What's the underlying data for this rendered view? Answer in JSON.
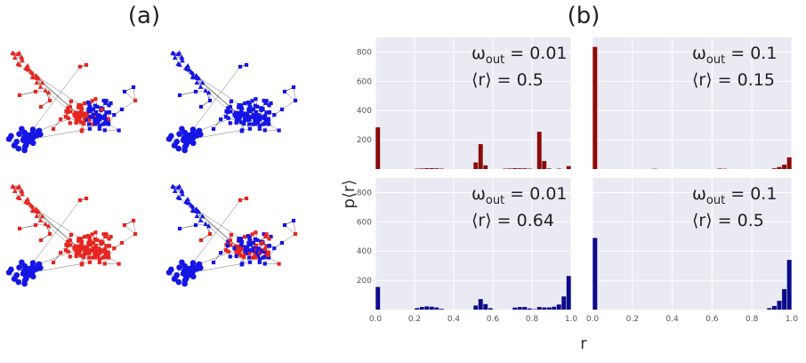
{
  "figure": {
    "panel_a_label": "(a)",
    "panel_b_label": "(b)"
  },
  "colors": {
    "red": "#e8251f",
    "blue": "#1515e6",
    "bar_top": "#8b0a0a",
    "bar_bottom": "#0b0b8a",
    "plot_bg": "#eaeaf2",
    "grid": "#ffffff"
  },
  "network_panels": [
    {
      "name": "network-top-left",
      "scheme": "mixed-top"
    },
    {
      "name": "network-top-right",
      "scheme": "all-blue"
    },
    {
      "name": "network-bottom-left",
      "scheme": "red-majority"
    },
    {
      "name": "network-bottom-right",
      "scheme": "mixed-bottom"
    }
  ],
  "chart_data": {
    "type": "bar",
    "ylabel": "p⟨r⟩",
    "xlabel": "r",
    "xlim": [
      0,
      1
    ],
    "ylim": [
      0,
      900
    ],
    "xticks": [
      0.0,
      0.2,
      0.4,
      0.6,
      0.8,
      1.0
    ],
    "xtick_labels": [
      "0.0",
      "0.2",
      "0.4",
      "0.6",
      "0.8",
      "1.0"
    ],
    "yticks": [
      200,
      400,
      600,
      800
    ],
    "ytick_labels": [
      "200",
      "400",
      "600",
      "800"
    ],
    "bins": 40,
    "subplots": [
      {
        "name": "top-left",
        "color": "#8b0a0a",
        "omega_symbol": "ω",
        "omega_sub": "out",
        "omega_value": " = 0.01",
        "r_text": "⟨r⟩ = 0.5",
        "values": [
          285,
          0,
          0,
          0,
          0,
          0,
          0,
          0,
          3,
          4,
          6,
          6,
          5,
          3,
          0,
          0,
          0,
          0,
          0,
          0,
          45,
          170,
          25,
          0,
          0,
          0,
          3,
          4,
          6,
          5,
          5,
          3,
          0,
          255,
          55,
          4,
          0,
          3,
          0,
          20
        ]
      },
      {
        "name": "top-right",
        "color": "#8b0a0a",
        "omega_symbol": "ω",
        "omega_sub": "out",
        "omega_value": " = 0.1",
        "r_text": "⟨r⟩ = 0.15",
        "values": [
          835,
          0,
          0,
          0,
          0,
          0,
          0,
          0,
          0,
          0,
          0,
          0,
          2,
          0,
          0,
          0,
          0,
          0,
          0,
          0,
          0,
          0,
          0,
          0,
          0,
          3,
          2,
          0,
          0,
          0,
          0,
          0,
          0,
          0,
          0,
          0,
          5,
          14,
          30,
          80
        ]
      },
      {
        "name": "bottom-left",
        "color": "#0b0b8a",
        "omega_symbol": "ω",
        "omega_sub": "out",
        "omega_value": " = 0.01",
        "r_text": "⟨r⟩ = 0.64",
        "values": [
          155,
          0,
          0,
          0,
          0,
          0,
          0,
          0,
          10,
          18,
          22,
          20,
          15,
          5,
          0,
          0,
          0,
          0,
          0,
          0,
          28,
          72,
          38,
          10,
          0,
          0,
          0,
          0,
          14,
          18,
          18,
          8,
          3,
          18,
          15,
          15,
          20,
          35,
          90,
          230
        ]
      },
      {
        "name": "bottom-right",
        "color": "#0b0b8a",
        "omega_symbol": "ω",
        "omega_sub": "out",
        "omega_value": " = 0.1",
        "r_text": "⟨r⟩ = 0.5",
        "values": [
          490,
          0,
          0,
          0,
          0,
          0,
          0,
          0,
          0,
          0,
          0,
          0,
          0,
          0,
          0,
          0,
          0,
          0,
          0,
          0,
          0,
          0,
          0,
          0,
          0,
          0,
          0,
          0,
          0,
          0,
          0,
          0,
          0,
          0,
          0,
          10,
          25,
          60,
          140,
          340
        ]
      }
    ]
  }
}
